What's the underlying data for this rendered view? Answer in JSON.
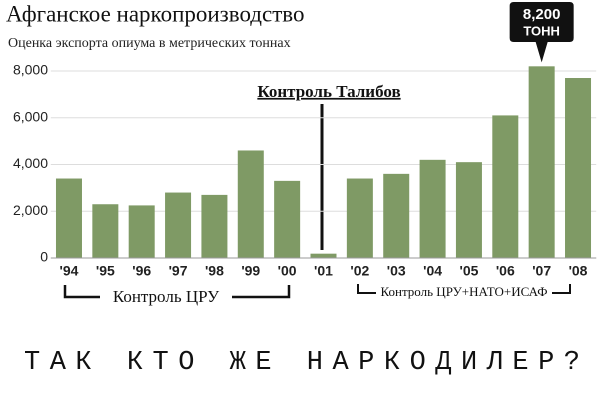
{
  "chart_data": {
    "type": "bar",
    "title": "Афганское наркопроизводство",
    "subtitle": "Оценка экспорта опиума в метрических тоннах",
    "categories": [
      "'94",
      "'95",
      "'96",
      "'97",
      "'98",
      "'99",
      "'00",
      "'01",
      "'02",
      "'03",
      "'04",
      "'05",
      "'06",
      "'07",
      "'08"
    ],
    "values": [
      3400,
      2300,
      2250,
      2800,
      2700,
      4600,
      3300,
      185,
      3400,
      3600,
      4200,
      4100,
      6100,
      8200,
      7700
    ],
    "value_labels": [
      null,
      null,
      null,
      null,
      null,
      null,
      null,
      null,
      null,
      null,
      null,
      null,
      null,
      "8,200",
      null
    ],
    "callout_unit": "ТОНН",
    "color": "#7f9a65",
    "ylim": [
      0,
      8000
    ],
    "yticks": [
      0,
      {
        "value": 2000,
        "label": "2,000"
      },
      {
        "value": 4000,
        "label": "4,000"
      },
      {
        "value": 6000,
        "label": "6,000"
      },
      {
        "value": 8000,
        "label": "8,000"
      }
    ],
    "grid": true,
    "annotations": {
      "taliban": "Контроль Талибов",
      "cia": "Контроль ЦРУ",
      "nato": "Контроль ЦРУ+НАТО+ИСАФ",
      "footer": "ТАК КТО ЖЕ НАРКОДИЛЕР?"
    }
  }
}
